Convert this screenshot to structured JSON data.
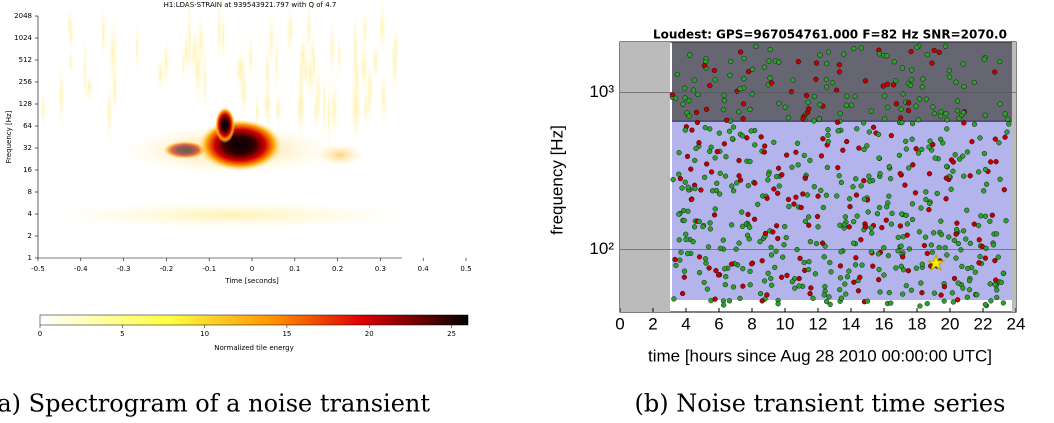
{
  "chart_data": [
    {
      "type": "heatmap",
      "title": "H1:LDAS-STRAIN at 939543921.797 with Q of 4.7",
      "x_label": "Time [seconds]",
      "y_label": "Frequency [Hz]",
      "xlim": [
        -0.5,
        0.5
      ],
      "xticks": [
        -0.5,
        -0.4,
        -0.3,
        -0.2,
        -0.1,
        0,
        0.1,
        0.2,
        0.3,
        0.4,
        0.5
      ],
      "ylim": [
        1,
        2048
      ],
      "yticks": [
        1,
        2,
        4,
        8,
        16,
        32,
        64,
        128,
        256,
        512,
        1024,
        2048
      ],
      "log_y": true,
      "colorbar": {
        "label": "Normalized tile energy",
        "lim": [
          0,
          26
        ],
        "ticks": [
          0,
          5,
          10,
          15,
          20,
          25
        ]
      }
    },
    {
      "type": "scatter",
      "title": "Loudest: GPS=967054761.000   F=82 Hz   SNR=2070.0",
      "x_label": "time [hours since Aug 28 2010 00:00:00 UTC]",
      "y_label": "frequency [Hz]",
      "xlim": [
        0,
        24
      ],
      "xticks": [
        0,
        2,
        4,
        6,
        8,
        10,
        12,
        14,
        16,
        18,
        20,
        22,
        24
      ],
      "ylim": [
        40,
        2100
      ],
      "yticks": [
        {
          "value": 100,
          "label": "10²"
        },
        {
          "value": 1000,
          "label": "10³"
        }
      ],
      "log_y": true
    }
  ],
  "captions": [
    "(a) Spectrogram of a noise transient",
    "(b) Noise transient time series"
  ]
}
